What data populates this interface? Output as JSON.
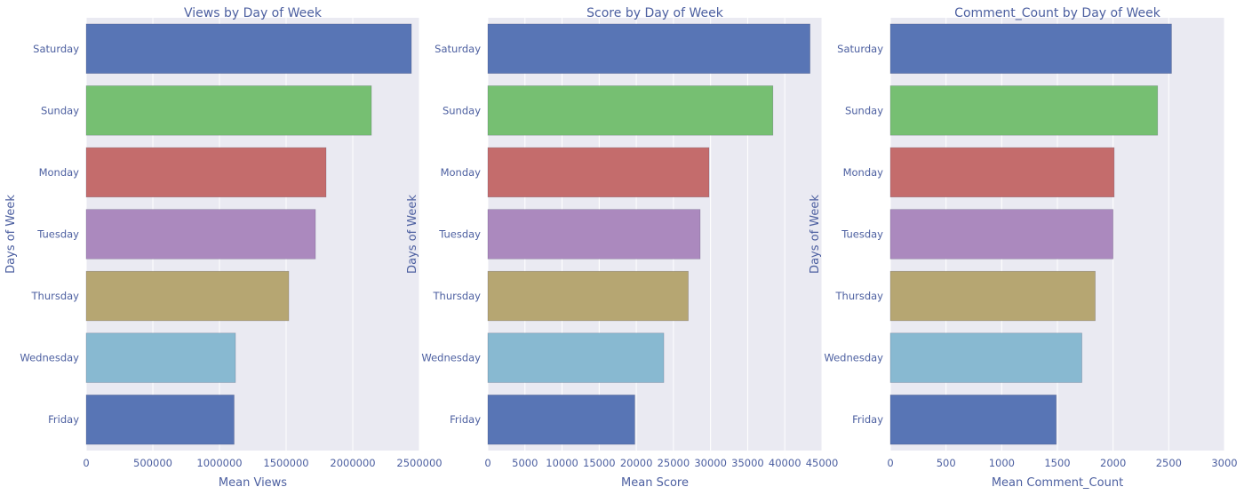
{
  "colors": {
    "panel_bg": "#eaeaf2",
    "grid": "#ffffff",
    "text": "#4c5fa0",
    "bars": [
      "#5875b5",
      "#76bf72",
      "#c46c6c",
      "#ab89be",
      "#b6a672",
      "#88b9d1",
      "#5875b5"
    ]
  },
  "chart_data": [
    {
      "type": "bar",
      "orientation": "horizontal",
      "title": "Views by Day of Week",
      "xlabel": "Mean Views",
      "ylabel": "Days of Week",
      "categories": [
        "Saturday",
        "Sunday",
        "Monday",
        "Tuesday",
        "Thursday",
        "Wednesday",
        "Friday"
      ],
      "values": [
        2440000,
        2140000,
        1800000,
        1720000,
        1520000,
        1120000,
        1110000
      ],
      "xlim": [
        0,
        2500000
      ],
      "xticks": [
        0,
        500000,
        1000000,
        1500000,
        2000000,
        2500000
      ],
      "xtick_labels": [
        "0",
        "500000",
        "1000000",
        "1500000",
        "2000000",
        "2500000"
      ],
      "grid": true
    },
    {
      "type": "bar",
      "orientation": "horizontal",
      "title": "Score by Day of Week",
      "xlabel": "Mean Score",
      "ylabel": "Days of Week",
      "categories": [
        "Saturday",
        "Sunday",
        "Monday",
        "Tuesday",
        "Thursday",
        "Wednesday",
        "Friday"
      ],
      "values": [
        43400,
        38400,
        29800,
        28600,
        27000,
        23700,
        19800
      ],
      "xlim": [
        0,
        45000
      ],
      "xticks": [
        0,
        5000,
        10000,
        15000,
        20000,
        25000,
        30000,
        35000,
        40000,
        45000
      ],
      "xtick_labels": [
        "0",
        "5000",
        "10000",
        "15000",
        "20000",
        "25000",
        "30000",
        "35000",
        "40000",
        "45000"
      ],
      "grid": true
    },
    {
      "type": "bar",
      "orientation": "horizontal",
      "title": "Comment_Count by Day of Week",
      "xlabel": "Mean Comment_Count",
      "ylabel": "Days of Week",
      "categories": [
        "Saturday",
        "Sunday",
        "Monday",
        "Tuesday",
        "Thursday",
        "Wednesday",
        "Friday"
      ],
      "values": [
        2525,
        2400,
        2010,
        2000,
        1840,
        1720,
        1490
      ],
      "xlim": [
        0,
        3000
      ],
      "xticks": [
        0,
        500,
        1000,
        1500,
        2000,
        2500,
        3000
      ],
      "xtick_labels": [
        "0",
        "500",
        "1000",
        "1500",
        "2000",
        "2500",
        "3000"
      ],
      "grid": true
    }
  ]
}
